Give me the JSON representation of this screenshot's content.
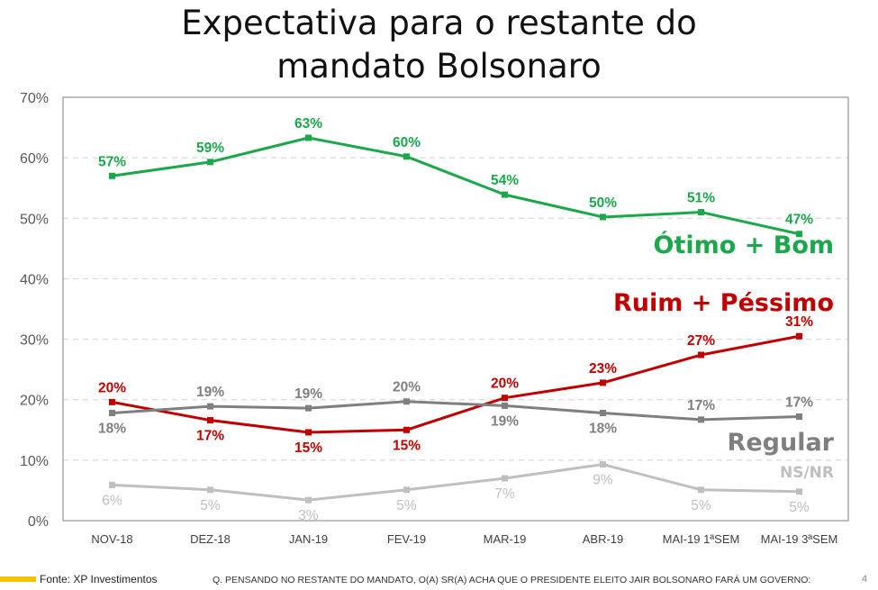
{
  "chart_data": {
    "type": "line",
    "title": [
      "Expectativa para o restante do",
      "mandato Bolsonaro"
    ],
    "categories": [
      "NOV-18",
      "DEZ-18",
      "JAN-19",
      "FEV-19",
      "MAR-19",
      "ABR-19",
      "MAI-19 1ªSEM",
      "MAI-19 3ªSEM"
    ],
    "ylim": [
      0,
      70
    ],
    "yticks": [
      "0%",
      "10%",
      "20%",
      "30%",
      "40%",
      "50%",
      "60%",
      "70%"
    ],
    "grid": true,
    "series": [
      {
        "name": "Ótimo + Bom",
        "color": "#1aa84b",
        "values": [
          57,
          59.3,
          63.3,
          60.2,
          53.9,
          50.2,
          51,
          47.4
        ],
        "labels": [
          "57%",
          "59%",
          "63%",
          "60%",
          "54%",
          "50%",
          "51%",
          "47%"
        ],
        "label_position": "above",
        "label_weight": "bold"
      },
      {
        "name": "Ruim + Péssimo",
        "color": "#c00000",
        "values": [
          19.6,
          16.6,
          14.6,
          15,
          20.3,
          22.8,
          27.4,
          30.5
        ],
        "labels": [
          "20%",
          "17%",
          "15%",
          "15%",
          "20%",
          "23%",
          "27%",
          "31%"
        ],
        "label_position": [
          "above",
          "below",
          "below",
          "below",
          "above",
          "above",
          "above",
          "above"
        ],
        "label_weight": "bold"
      },
      {
        "name": "Regular",
        "color": "#7f7f7f",
        "values": [
          17.8,
          18.9,
          18.6,
          19.7,
          19,
          17.8,
          16.7,
          17.2
        ],
        "labels": [
          "18%",
          "19%",
          "19%",
          "20%",
          "19%",
          "18%",
          "17%",
          "17%"
        ],
        "label_position": [
          "below",
          "above",
          "above",
          "above",
          "below",
          "below",
          "above",
          "above"
        ],
        "label_weight": "bold"
      },
      {
        "name": "NS/NR",
        "color": "#bfbfbf",
        "values": [
          5.9,
          5.1,
          3.4,
          5.1,
          7,
          9.3,
          5.1,
          4.8
        ],
        "labels": [
          "6%",
          "5%",
          "3%",
          "5%",
          "7%",
          "9%",
          "5%",
          "5%"
        ],
        "label_position": "below",
        "label_weight": "normal"
      }
    ]
  },
  "footer": {
    "source": "Fonte: XP Investimentos",
    "question": "Q. PENSANDO NO RESTANTE DO MANDATO, O(A) SR(A) ACHA QUE O PRESIDENTE ELEITO JAIR BOLSONARO FARÁ UM GOVERNO:",
    "page": "4"
  }
}
